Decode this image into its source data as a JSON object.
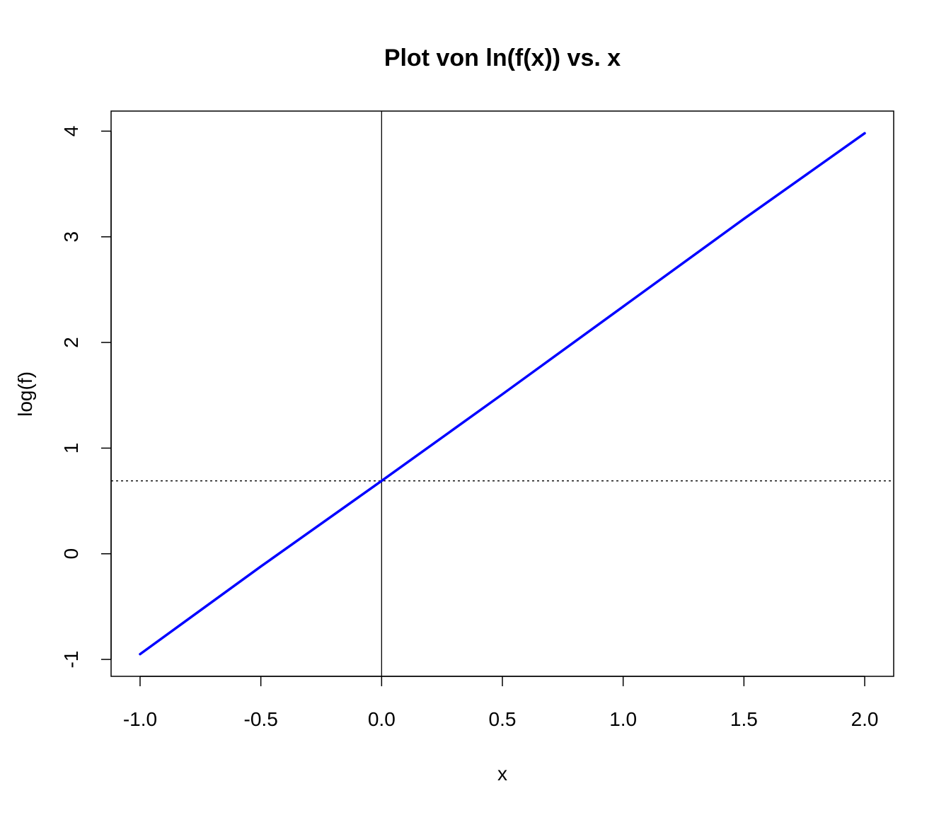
{
  "chart_data": {
    "type": "line",
    "title": "Plot von ln(f(x)) vs. x",
    "xlabel": "x",
    "ylabel": "log(f)",
    "xlim": [
      -1.12,
      2.12
    ],
    "ylim": [
      -1.16,
      4.19
    ],
    "x_ticks": [
      -1.0,
      -0.5,
      0.0,
      0.5,
      1.0,
      1.5,
      2.0
    ],
    "x_tick_labels": [
      "-1.0",
      "-0.5",
      "0.0",
      "0.5",
      "1.0",
      "1.5",
      "2.0"
    ],
    "y_ticks": [
      -1,
      0,
      1,
      2,
      3,
      4
    ],
    "y_tick_labels": [
      "-1",
      "0",
      "1",
      "2",
      "3",
      "4"
    ],
    "grid": false,
    "series": [
      {
        "color": "#0000ff",
        "x": [
          -1.0,
          -0.5,
          0.0,
          0.5,
          1.0,
          1.5,
          2.0
        ],
        "y": [
          -0.95,
          -0.12,
          0.69,
          1.51,
          2.34,
          3.17,
          3.98
        ]
      }
    ],
    "reference_lines": [
      {
        "orientation": "vertical",
        "value": 0,
        "style": "solid",
        "color": "#000000"
      },
      {
        "orientation": "horizontal",
        "value": 0.69,
        "style": "dotted",
        "color": "#000000"
      }
    ]
  }
}
